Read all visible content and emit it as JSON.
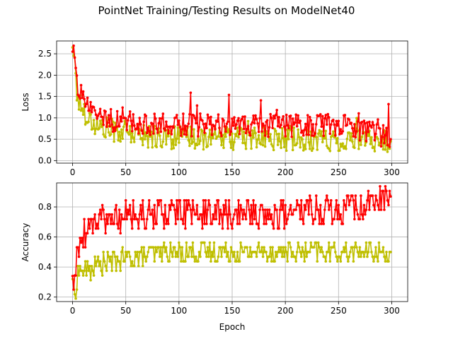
{
  "figure": {
    "title": "PointNet Training/Testing Results on ModelNet40"
  },
  "chart_data": [
    {
      "type": "line",
      "title": "",
      "xlabel": "",
      "ylabel": "Loss",
      "xlim": [
        -15,
        315
      ],
      "ylim": [
        -0.06,
        2.8
      ],
      "xticks": [
        0,
        50,
        100,
        150,
        200,
        250,
        300
      ],
      "yticks": [
        0.0,
        0.5,
        1.0,
        1.5,
        2.0,
        2.5
      ],
      "ytick_labels": [
        "0.0",
        "0.5",
        "1.0",
        "1.5",
        "2.0",
        "2.5"
      ],
      "xtick_labels": [
        "0",
        "50",
        "100",
        "150",
        "200",
        "250",
        "300"
      ],
      "grid": true,
      "series": [
        {
          "color": "#bfbf00",
          "marker": "dot",
          "kind": "train-loss",
          "anchors_x": [
            0,
            2,
            4,
            6,
            10,
            15,
            20,
            30,
            40,
            50,
            60,
            70,
            80,
            100,
            150,
            200,
            250,
            300
          ],
          "anchors_y": [
            2.65,
            2.3,
            1.6,
            1.35,
            1.2,
            1.0,
            0.85,
            0.75,
            0.7,
            0.65,
            0.6,
            0.58,
            0.56,
            0.54,
            0.52,
            0.5,
            0.48,
            0.45
          ]
        },
        {
          "color": "#ff0000",
          "marker": "dot",
          "kind": "test-loss",
          "anchors_x": [
            0,
            2,
            4,
            6,
            10,
            15,
            20,
            30,
            40,
            50,
            60,
            70,
            80,
            100,
            150,
            200,
            250,
            300
          ],
          "anchors_y": [
            2.55,
            2.45,
            1.7,
            1.55,
            1.4,
            1.2,
            1.05,
            0.95,
            0.9,
            0.85,
            0.85,
            0.82,
            0.82,
            0.82,
            0.8,
            0.8,
            0.8,
            0.5
          ]
        }
      ]
    },
    {
      "type": "line",
      "title": "",
      "xlabel": "Epoch",
      "ylabel": "Accuracy",
      "xlim": [
        -15,
        315
      ],
      "ylim": [
        0.17,
        0.96
      ],
      "xticks": [
        0,
        50,
        100,
        150,
        200,
        250,
        300
      ],
      "yticks": [
        0.2,
        0.4,
        0.6,
        0.8
      ],
      "ytick_labels": [
        "0.2",
        "0.4",
        "0.6",
        "0.8"
      ],
      "xtick_labels": [
        "0",
        "50",
        "100",
        "150",
        "200",
        "250",
        "300"
      ],
      "grid": true,
      "series": [
        {
          "color": "#bfbf00",
          "marker": "dot",
          "kind": "train-acc",
          "anchors_x": [
            0,
            2,
            4,
            6,
            10,
            15,
            20,
            30,
            40,
            50,
            60,
            70,
            80,
            100,
            150,
            200,
            250,
            300
          ],
          "anchors_y": [
            0.32,
            0.2,
            0.33,
            0.38,
            0.38,
            0.37,
            0.4,
            0.42,
            0.44,
            0.46,
            0.47,
            0.48,
            0.5,
            0.5,
            0.5,
            0.5,
            0.5,
            0.5
          ]
        },
        {
          "color": "#ff0000",
          "marker": "dot",
          "kind": "test-acc",
          "anchors_x": [
            0,
            2,
            4,
            6,
            10,
            15,
            20,
            30,
            40,
            50,
            60,
            70,
            80,
            100,
            150,
            200,
            250,
            300
          ],
          "anchors_y": [
            0.34,
            0.25,
            0.5,
            0.55,
            0.62,
            0.66,
            0.7,
            0.72,
            0.73,
            0.74,
            0.74,
            0.75,
            0.75,
            0.76,
            0.76,
            0.76,
            0.77,
            0.87
          ]
        }
      ]
    }
  ]
}
